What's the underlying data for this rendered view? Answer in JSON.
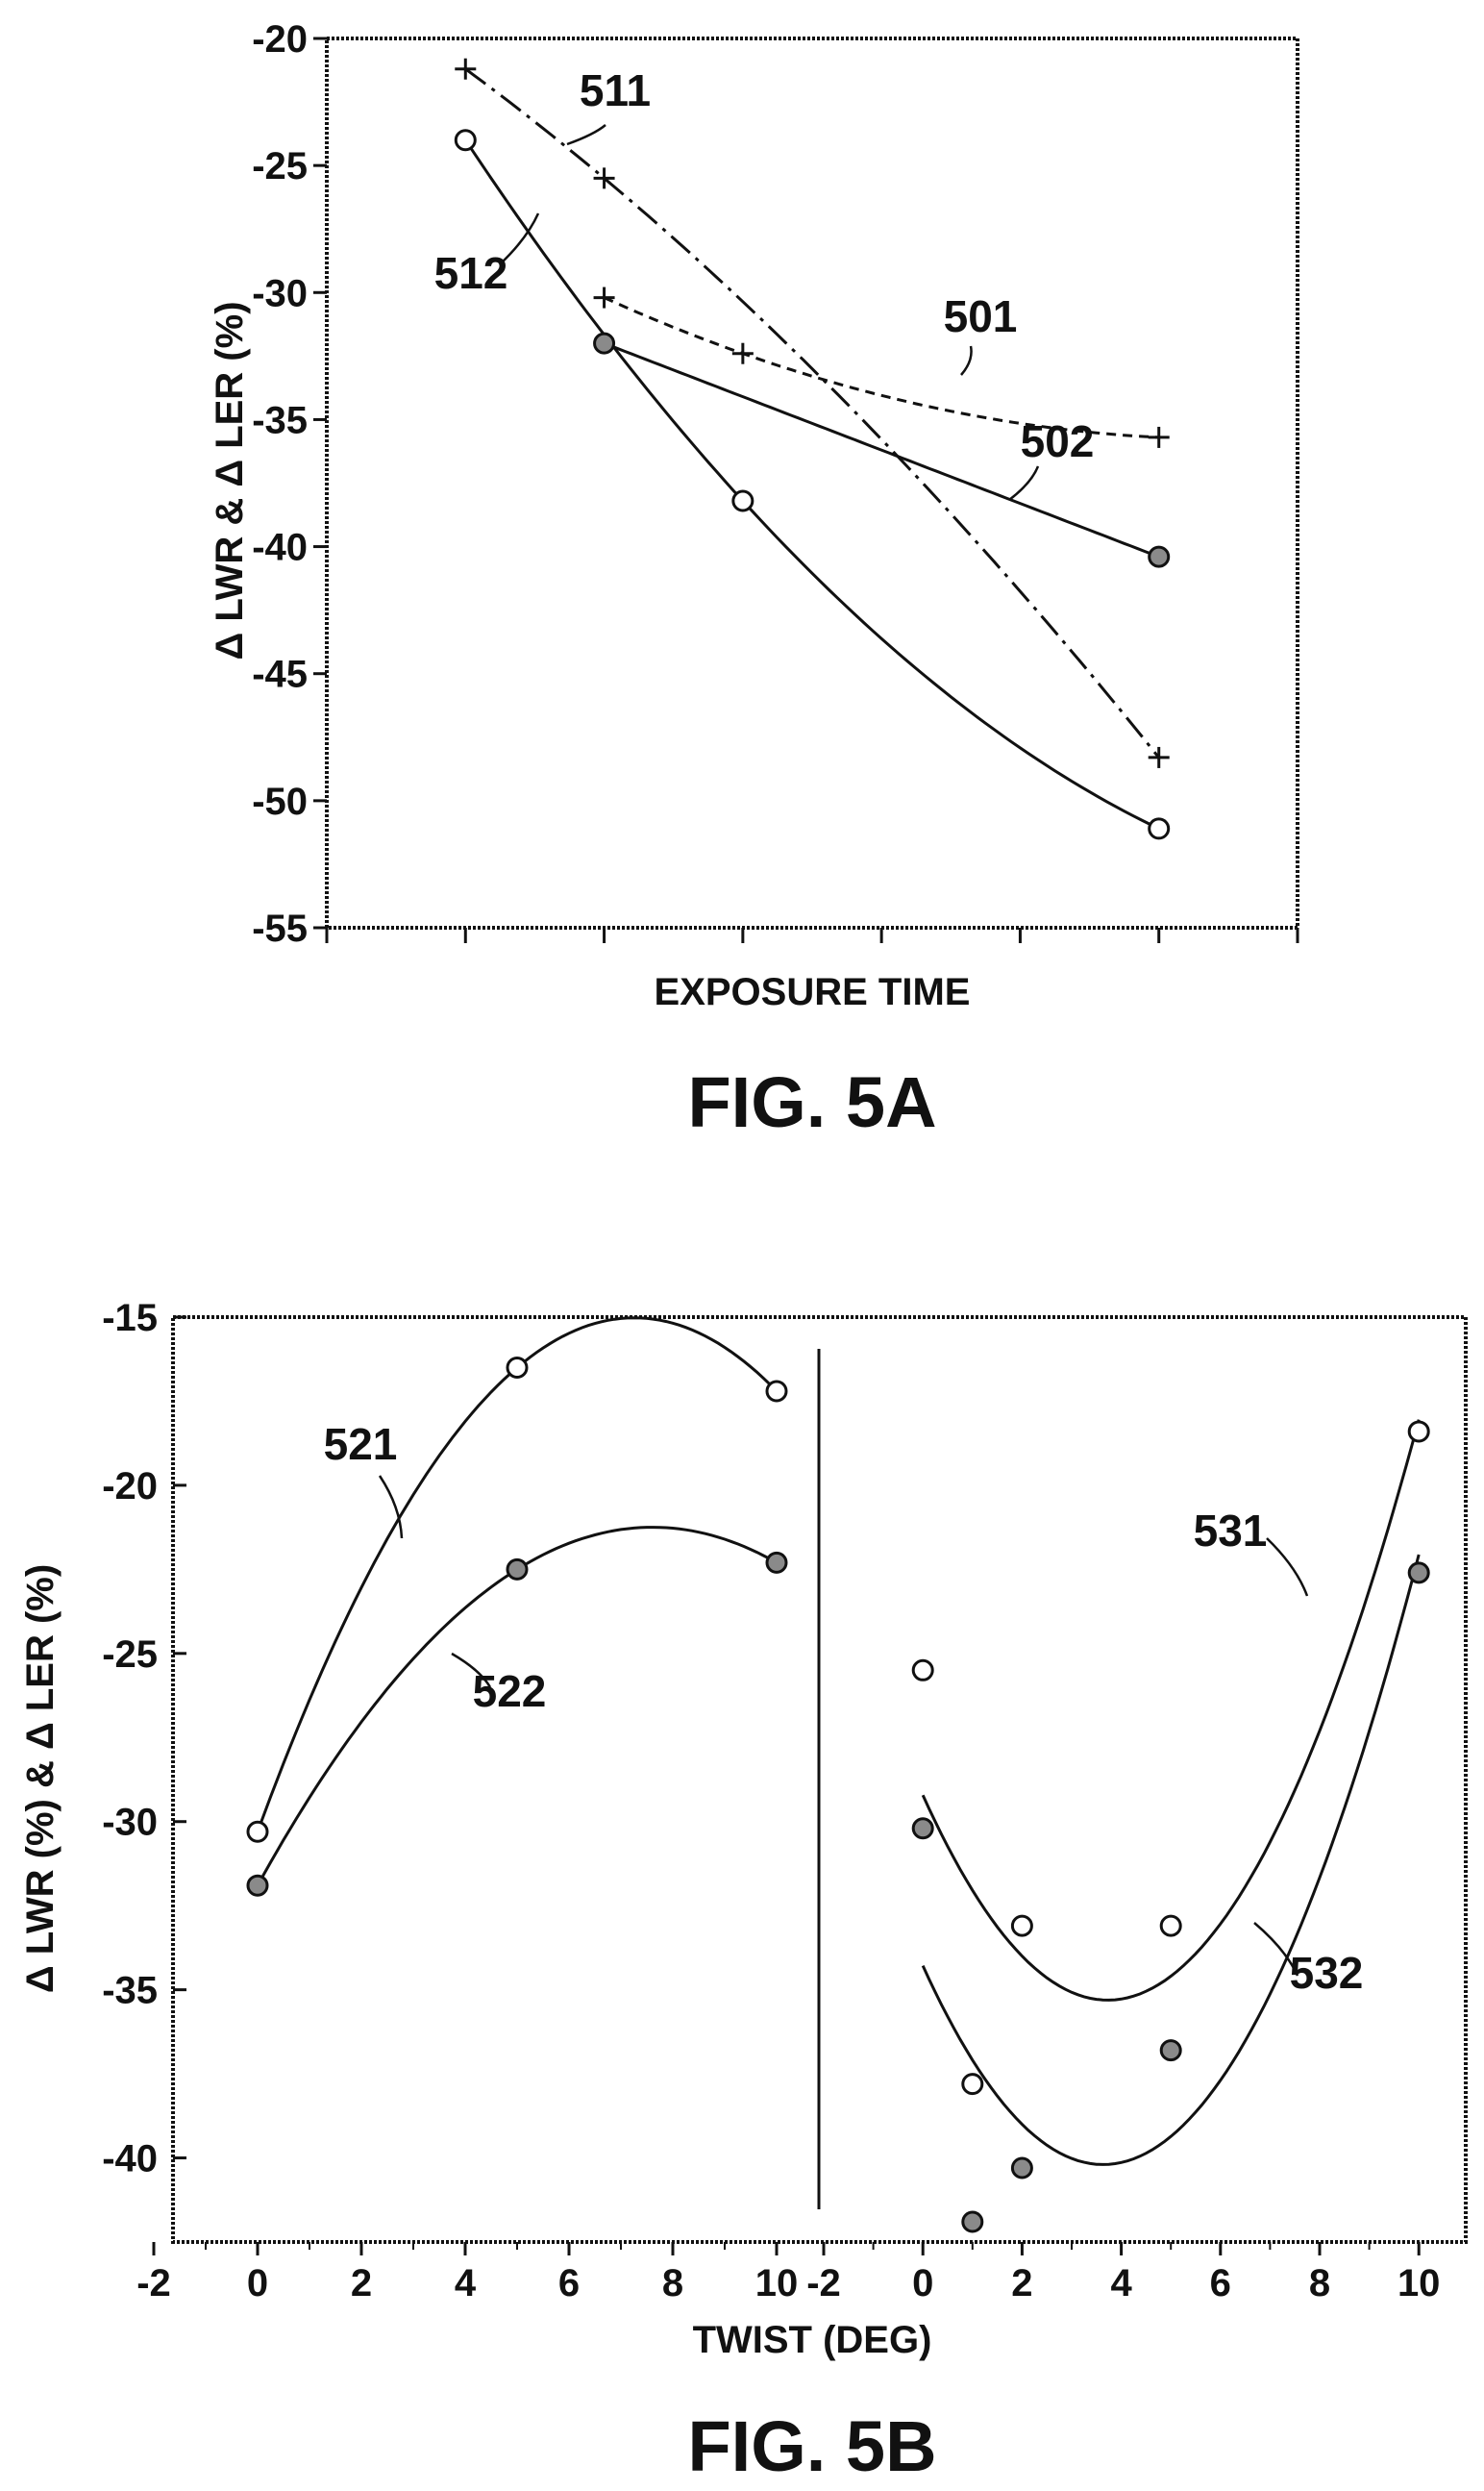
{
  "chart_data": [
    {
      "type": "line",
      "caption": "FIG. 5A",
      "xlabel": "EXPOSURE TIME",
      "ylabel": "Δ LWR & Δ LER (%)",
      "ylim": [
        -55,
        -20
      ],
      "yticks": [
        -20,
        -25,
        -30,
        -35,
        -40,
        -45,
        -50,
        -55
      ],
      "xlim": [
        0,
        7
      ],
      "x_tick_positions": [
        0,
        1,
        2,
        3,
        4,
        5,
        6,
        7
      ],
      "series": [
        {
          "name": "501",
          "style": "dashed",
          "marker": "plus",
          "x": [
            2,
            3,
            6
          ],
          "y": [
            -30.2,
            -32.4,
            -35.7
          ]
        },
        {
          "name": "502",
          "style": "solid",
          "marker": "filled-circle",
          "x": [
            2,
            6
          ],
          "y": [
            -32,
            -40.4
          ]
        },
        {
          "name": "511",
          "style": "dash-dot",
          "marker": "plus",
          "x": [
            1,
            2,
            6
          ],
          "y": [
            -21.2,
            -25.5,
            -48.3
          ]
        },
        {
          "name": "512",
          "style": "solid",
          "marker": "open-circle",
          "x": [
            1,
            3,
            6
          ],
          "y": [
            -24,
            -38.2,
            -51.1
          ]
        }
      ]
    },
    {
      "type": "scatter",
      "caption": "FIG. 5B",
      "xlabel": "TWIST (DEG)",
      "ylabel": "Δ LWR (%) & Δ LER (%)",
      "ylim": [
        -42.5,
        -15
      ],
      "yticks": [
        -15,
        -20,
        -25,
        -30,
        -35,
        -40
      ],
      "panels": [
        {
          "xticks": [
            -2,
            0,
            2,
            4,
            6,
            8,
            10
          ],
          "series": [
            {
              "name": "521",
              "marker": "open-circle",
              "x": [
                0,
                5,
                10
              ],
              "y": [
                -30.3,
                -16.5,
                -17.2
              ]
            },
            {
              "name": "522",
              "marker": "filled-circle",
              "x": [
                0,
                5,
                10
              ],
              "y": [
                -31.9,
                -22.5,
                -22.3
              ]
            }
          ]
        },
        {
          "xticks": [
            -2,
            0,
            2,
            4,
            6,
            8,
            10
          ],
          "series": [
            {
              "name": "531",
              "marker": "open-circle",
              "x": [
                0,
                1,
                2,
                5,
                10
              ],
              "y": [
                -25.5,
                -37.8,
                -33.1,
                -33.1,
                -18.4
              ]
            },
            {
              "name": "532",
              "marker": "filled-circle",
              "x": [
                0,
                1,
                2,
                5,
                10
              ],
              "y": [
                -30.2,
                -41.9,
                -40.3,
                -36.8,
                -22.6
              ]
            }
          ]
        }
      ]
    }
  ]
}
